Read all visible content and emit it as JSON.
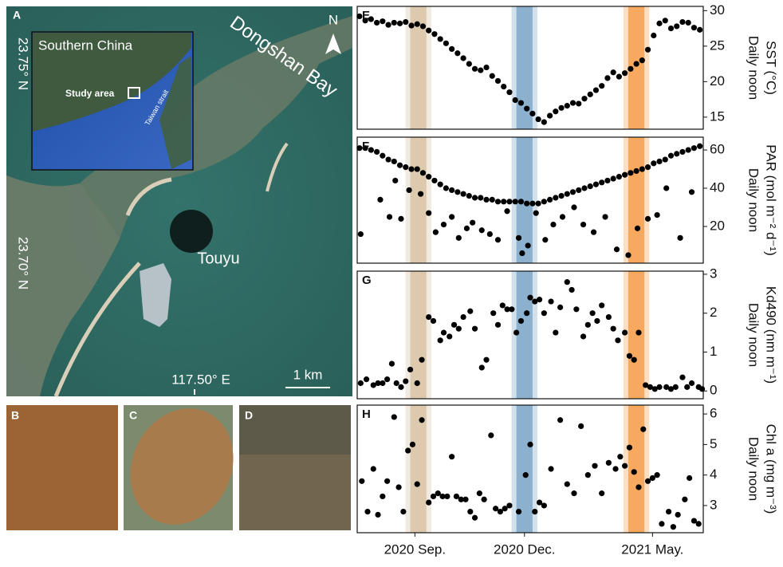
{
  "map": {
    "panel_label": "A",
    "inset_title": "Southern China",
    "study_area": "Study area",
    "strait": "Taiwan strait",
    "lat_north": "23.75° N",
    "lat_south": "23.70° N",
    "bay": "Dongshan Bay",
    "north": "N",
    "site": "Touyu",
    "longitude": "117.50° E",
    "scale": "1 km"
  },
  "photos": [
    "B",
    "C",
    "D"
  ],
  "chart_data": [
    {
      "type": "scatter",
      "panel_label": "E",
      "ylabel": [
        "Daily noon",
        "SST (°C)"
      ],
      "color": "#000000",
      "xlim": [
        0,
        300
      ],
      "ylim": [
        13.3,
        30.6
      ],
      "yticks": [
        15,
        20,
        25,
        30
      ],
      "bands": [
        {
          "range": [
            46,
            60
          ],
          "color": "#d8c3a5"
        },
        {
          "range": [
            138,
            152
          ],
          "color": "#7fa8c9"
        },
        {
          "range": [
            235,
            249
          ],
          "color": "#f6a04d"
        }
      ],
      "x": [
        2,
        7,
        12,
        17,
        22,
        27,
        32,
        37,
        42,
        47,
        52,
        57,
        62,
        67,
        72,
        77,
        82,
        87,
        92,
        97,
        102,
        107,
        112,
        117,
        122,
        127,
        132,
        137,
        142,
        147,
        152,
        157,
        162,
        167,
        172,
        177,
        182,
        187,
        192,
        197,
        202,
        207,
        212,
        217,
        222,
        227,
        232,
        237,
        242,
        247,
        252,
        257,
        262,
        267,
        272,
        277,
        282,
        287,
        292,
        297
      ],
      "values": [
        29.2,
        28.6,
        28.8,
        28.3,
        28.5,
        28.0,
        28.3,
        28.2,
        28.4,
        27.9,
        28.1,
        27.8,
        27.2,
        26.7,
        26.0,
        25.4,
        24.6,
        24.0,
        23.3,
        22.5,
        21.8,
        21.6,
        22.0,
        20.8,
        20.1,
        19.3,
        18.5,
        17.4,
        17.0,
        16.2,
        15.5,
        14.7,
        14.3,
        15.2,
        15.8,
        16.3,
        16.6,
        17.0,
        16.9,
        17.6,
        18.2,
        18.8,
        19.4,
        20.5,
        21.3,
        20.7,
        21.2,
        21.8,
        22.5,
        23.0,
        24.5,
        26.5,
        28.2,
        28.6,
        27.5,
        27.8,
        28.4,
        28.3,
        27.6,
        27.3
      ]
    },
    {
      "type": "scatter",
      "panel_label": "F",
      "ylabel": [
        "Daily noon",
        "PAR (mol m⁻² d⁻¹)"
      ],
      "color": "#000000",
      "xlim": [
        0,
        300
      ],
      "ylim": [
        0.8,
        66.7
      ],
      "yticks": [
        20,
        40,
        60
      ],
      "bands": [
        {
          "range": [
            46,
            60
          ],
          "color": "#d8c3a5"
        },
        {
          "range": [
            138,
            152
          ],
          "color": "#7fa8c9"
        },
        {
          "range": [
            235,
            249
          ],
          "color": "#f6a04d"
        }
      ],
      "x": [
        2,
        7,
        12,
        17,
        22,
        27,
        32,
        37,
        42,
        47,
        52,
        57,
        62,
        67,
        72,
        77,
        82,
        87,
        92,
        97,
        102,
        107,
        112,
        117,
        122,
        127,
        132,
        137,
        142,
        147,
        152,
        157,
        162,
        167,
        172,
        177,
        182,
        187,
        192,
        197,
        202,
        207,
        212,
        217,
        222,
        227,
        232,
        237,
        242,
        247,
        252,
        257,
        262,
        267,
        272,
        277,
        282,
        287,
        292,
        297,
        3,
        20,
        28,
        33,
        38,
        45,
        55,
        62,
        68,
        75,
        82,
        88,
        95,
        100,
        108,
        115,
        122,
        130,
        140,
        143,
        148,
        155,
        163,
        170,
        178,
        188,
        196,
        205,
        215,
        225,
        235,
        243,
        252,
        260,
        268,
        280,
        290
      ],
      "values": [
        61,
        61,
        60,
        59,
        57,
        55,
        54,
        52,
        51,
        50,
        50,
        48,
        46,
        44,
        42,
        40,
        39,
        38,
        37,
        36,
        35,
        35,
        34,
        34,
        33,
        33,
        33,
        33,
        33,
        32,
        32,
        32,
        33,
        34,
        35,
        36,
        37,
        38,
        39,
        40,
        41,
        42,
        43,
        44,
        45,
        46,
        47,
        48,
        49,
        50,
        51,
        53,
        54,
        55,
        57,
        58,
        59,
        60,
        61,
        62,
        16,
        34,
        25,
        44,
        24,
        39,
        37,
        27,
        17,
        21,
        25,
        14,
        19,
        22,
        18,
        16,
        13,
        28,
        14,
        6,
        10,
        27,
        13,
        21,
        25,
        30,
        21,
        17,
        25,
        8,
        5,
        19,
        24,
        26,
        40,
        14,
        38
      ]
    },
    {
      "type": "scatter",
      "panel_label": "G",
      "ylabel": [
        "Daily noon",
        "Kd490 (nm m⁻¹)"
      ],
      "color": "#000000",
      "xlim": [
        0,
        300
      ],
      "ylim": [
        -0.2,
        3.08
      ],
      "yticks": [
        0,
        1,
        2,
        3
      ],
      "bands": [
        {
          "range": [
            46,
            60
          ],
          "color": "#d8c3a5"
        },
        {
          "range": [
            138,
            152
          ],
          "color": "#7fa8c9"
        },
        {
          "range": [
            235,
            249
          ],
          "color": "#f6a04d"
        }
      ],
      "x": [
        3,
        8,
        14,
        18,
        22,
        26,
        30,
        34,
        38,
        42,
        46,
        52,
        56,
        62,
        66,
        72,
        75,
        80,
        84,
        88,
        92,
        98,
        102,
        108,
        112,
        118,
        122,
        126,
        130,
        134,
        138,
        142,
        147,
        150,
        154,
        158,
        162,
        168,
        172,
        176,
        182,
        186,
        190,
        196,
        200,
        204,
        208,
        212,
        218,
        222,
        226,
        232,
        236,
        240,
        244,
        250,
        254,
        258,
        262,
        268,
        272,
        276,
        282,
        286,
        290,
        296,
        299
      ],
      "values": [
        0.2,
        0.3,
        0.15,
        0.2,
        0.2,
        0.3,
        0.7,
        0.2,
        0.1,
        0.25,
        0.55,
        0.2,
        0.8,
        1.9,
        1.8,
        1.3,
        1.5,
        1.4,
        1.7,
        1.6,
        1.9,
        2.05,
        1.6,
        0.6,
        0.8,
        2.0,
        1.7,
        2.2,
        2.1,
        2.1,
        1.5,
        1.8,
        2.0,
        2.4,
        2.3,
        2.35,
        2.0,
        2.3,
        1.5,
        2.15,
        2.8,
        2.6,
        2.1,
        1.4,
        1.7,
        2.0,
        1.8,
        2.2,
        1.9,
        1.6,
        1.3,
        1.5,
        0.9,
        0.8,
        1.5,
        0.15,
        0.1,
        0.05,
        0.1,
        0.1,
        0.05,
        0.1,
        0.35,
        0.1,
        0.2,
        0.1,
        0.05
      ]
    },
    {
      "type": "scatter",
      "panel_label": "H",
      "ylabel": [
        "Daily noon",
        "Chl a (mg m⁻³)"
      ],
      "color": "#000000",
      "xlim": [
        0,
        300
      ],
      "ylim": [
        2.11,
        6.29
      ],
      "yticks": [
        3,
        4,
        5,
        6
      ],
      "xticks": [
        {
          "value": 50,
          "label": "2020 Sep."
        },
        {
          "value": 145,
          "label": "2020 Dec."
        },
        {
          "value": 256,
          "label": "2021 May."
        }
      ],
      "bands": [
        {
          "range": [
            46,
            60
          ],
          "color": "#d8c3a5"
        },
        {
          "range": [
            138,
            152
          ],
          "color": "#7fa8c9"
        },
        {
          "range": [
            235,
            249
          ],
          "color": "#f6a04d"
        }
      ],
      "x": [
        4,
        9,
        14,
        18,
        22,
        26,
        32,
        36,
        40,
        44,
        48,
        52,
        56,
        62,
        66,
        70,
        74,
        78,
        82,
        86,
        90,
        94,
        98,
        102,
        106,
        110,
        116,
        120,
        124,
        128,
        132,
        140,
        146,
        150,
        154,
        158,
        162,
        168,
        176,
        182,
        188,
        194,
        200,
        206,
        212,
        218,
        224,
        228,
        232,
        236,
        240,
        244,
        248,
        252,
        256,
        260,
        264,
        270,
        274,
        278,
        284,
        288,
        292,
        296
      ],
      "values": [
        3.8,
        2.8,
        4.2,
        2.7,
        3.3,
        3.8,
        5.9,
        3.6,
        2.8,
        4.8,
        5.0,
        3.7,
        5.8,
        3.1,
        3.3,
        3.4,
        3.3,
        3.3,
        4.6,
        3.3,
        3.2,
        3.2,
        2.8,
        2.6,
        3.4,
        3.2,
        5.3,
        2.9,
        2.8,
        2.9,
        3.0,
        2.8,
        4.0,
        5.0,
        2.8,
        3.1,
        3.0,
        4.2,
        5.8,
        3.7,
        3.4,
        5.6,
        4.0,
        4.3,
        3.4,
        4.4,
        4.2,
        4.6,
        4.3,
        4.9,
        4.1,
        3.6,
        5.5,
        3.8,
        3.9,
        4.0,
        2.4,
        2.8,
        2.3,
        2.7,
        3.2,
        3.9,
        2.5,
        2.4
      ]
    }
  ]
}
